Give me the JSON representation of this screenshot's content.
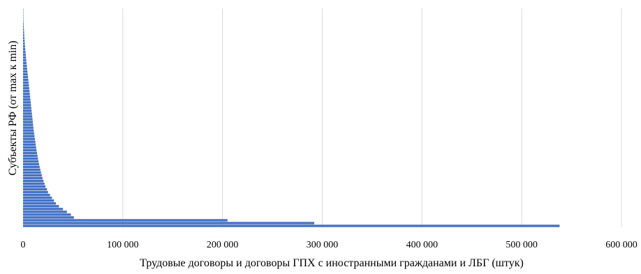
{
  "chart_data": {
    "type": "bar",
    "orientation": "horizontal",
    "xlabel": "Трудовые договоры и договоры ГПХ с иностранными гражданами и ЛБГ (штук)",
    "ylabel": "Субъекты РФ (от max к min)",
    "xlim": [
      0,
      600000
    ],
    "x_ticks": [
      {
        "value": 0,
        "label": "0"
      },
      {
        "value": 100000,
        "label": "100 000"
      },
      {
        "value": 200000,
        "label": "200 000"
      },
      {
        "value": 300000,
        "label": "300 000"
      },
      {
        "value": 400000,
        "label": "400 000"
      },
      {
        "value": 500000,
        "label": "500 000"
      },
      {
        "value": 600000,
        "label": "600 000"
      }
    ],
    "grid": "vertical",
    "bar_color": "#4472C4",
    "order": "max-bottom-to-min-top",
    "values": [
      538000,
      292000,
      205000,
      51000,
      48000,
      44000,
      40000,
      36000,
      33000,
      31000,
      29000,
      27000,
      25000,
      24000,
      22500,
      21500,
      20500,
      19500,
      18800,
      18000,
      17300,
      16700,
      16100,
      15500,
      15000,
      14500,
      14000,
      13500,
      13100,
      12700,
      12300,
      11900,
      11500,
      11100,
      10700,
      10400,
      10100,
      9800,
      9500,
      9200,
      8900,
      8600,
      8300,
      8000,
      7700,
      7400,
      7100,
      6800,
      6500,
      6200,
      5900,
      5600,
      5300,
      5000,
      4700,
      4400,
      4100,
      3800,
      3500,
      3250,
      3000,
      2750,
      2500,
      2250,
      2000,
      1800,
      1600,
      1400,
      1200,
      1050,
      900,
      750,
      600,
      450,
      300,
      180,
      100,
      50
    ]
  }
}
